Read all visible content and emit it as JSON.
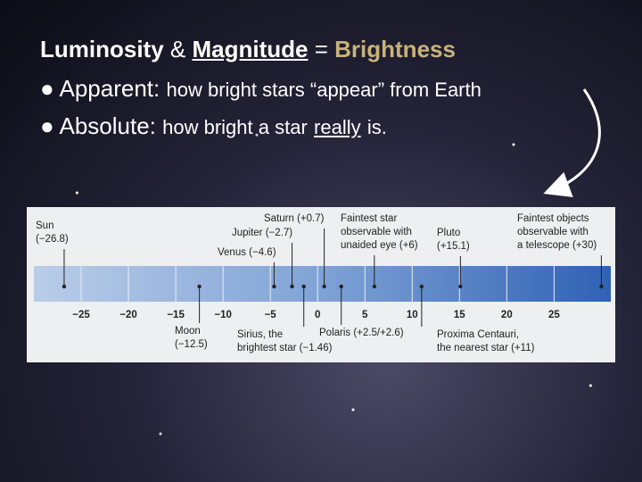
{
  "header": {
    "parts": [
      "Luminosity",
      "&",
      "Magnitude",
      "=",
      "Brightness"
    ]
  },
  "bullets": [
    {
      "term": "Apparent:",
      "text": "how bright stars “appear” from Earth"
    },
    {
      "term": "Absolute:",
      "text": [
        "how bright a star",
        "really",
        "is."
      ]
    }
  ],
  "scale": {
    "lim": [
      -30,
      31
    ],
    "ticks": [
      {
        "value": -25,
        "label": "−25"
      },
      {
        "value": -20,
        "label": "−20"
      },
      {
        "value": -15,
        "label": "−15"
      },
      {
        "value": -10,
        "label": "−10"
      },
      {
        "value": -5,
        "label": "−5"
      },
      0,
      5,
      10,
      15,
      20,
      25
    ],
    "objects": [
      {
        "lines": [
          "Sun",
          "(−26.8)"
        ],
        "value": -26.8
      },
      {
        "lines": [
          "Moon",
          "(−12.5)"
        ],
        "value": -12.5
      },
      {
        "lines": [
          "Venus (−4.6)"
        ],
        "value": -4.6
      },
      {
        "lines": [
          "Jupiter (−2.7)"
        ],
        "value": -2.7
      },
      {
        "lines": [
          "Sirius, the",
          "brightest star (−1.46)"
        ],
        "value": -1.46
      },
      {
        "lines": [
          "Saturn (+0.7)"
        ],
        "value": 0.7
      },
      {
        "lines": [
          "Polaris (+2.5/+2.6)"
        ],
        "value": 2.5
      },
      {
        "lines": [
          "Faintest star",
          "observable with",
          "unaided eye (+6)"
        ],
        "value": 6
      },
      {
        "lines": [
          "Proxima Centauri,",
          "the nearest star (+11)"
        ],
        "value": 11
      },
      {
        "lines": [
          "Pluto",
          "(+15.1)"
        ],
        "value": 15.1
      },
      {
        "lines": [
          "Faintest objects",
          "observable with",
          "a telescope (+30)"
        ],
        "value": 30
      }
    ]
  }
}
